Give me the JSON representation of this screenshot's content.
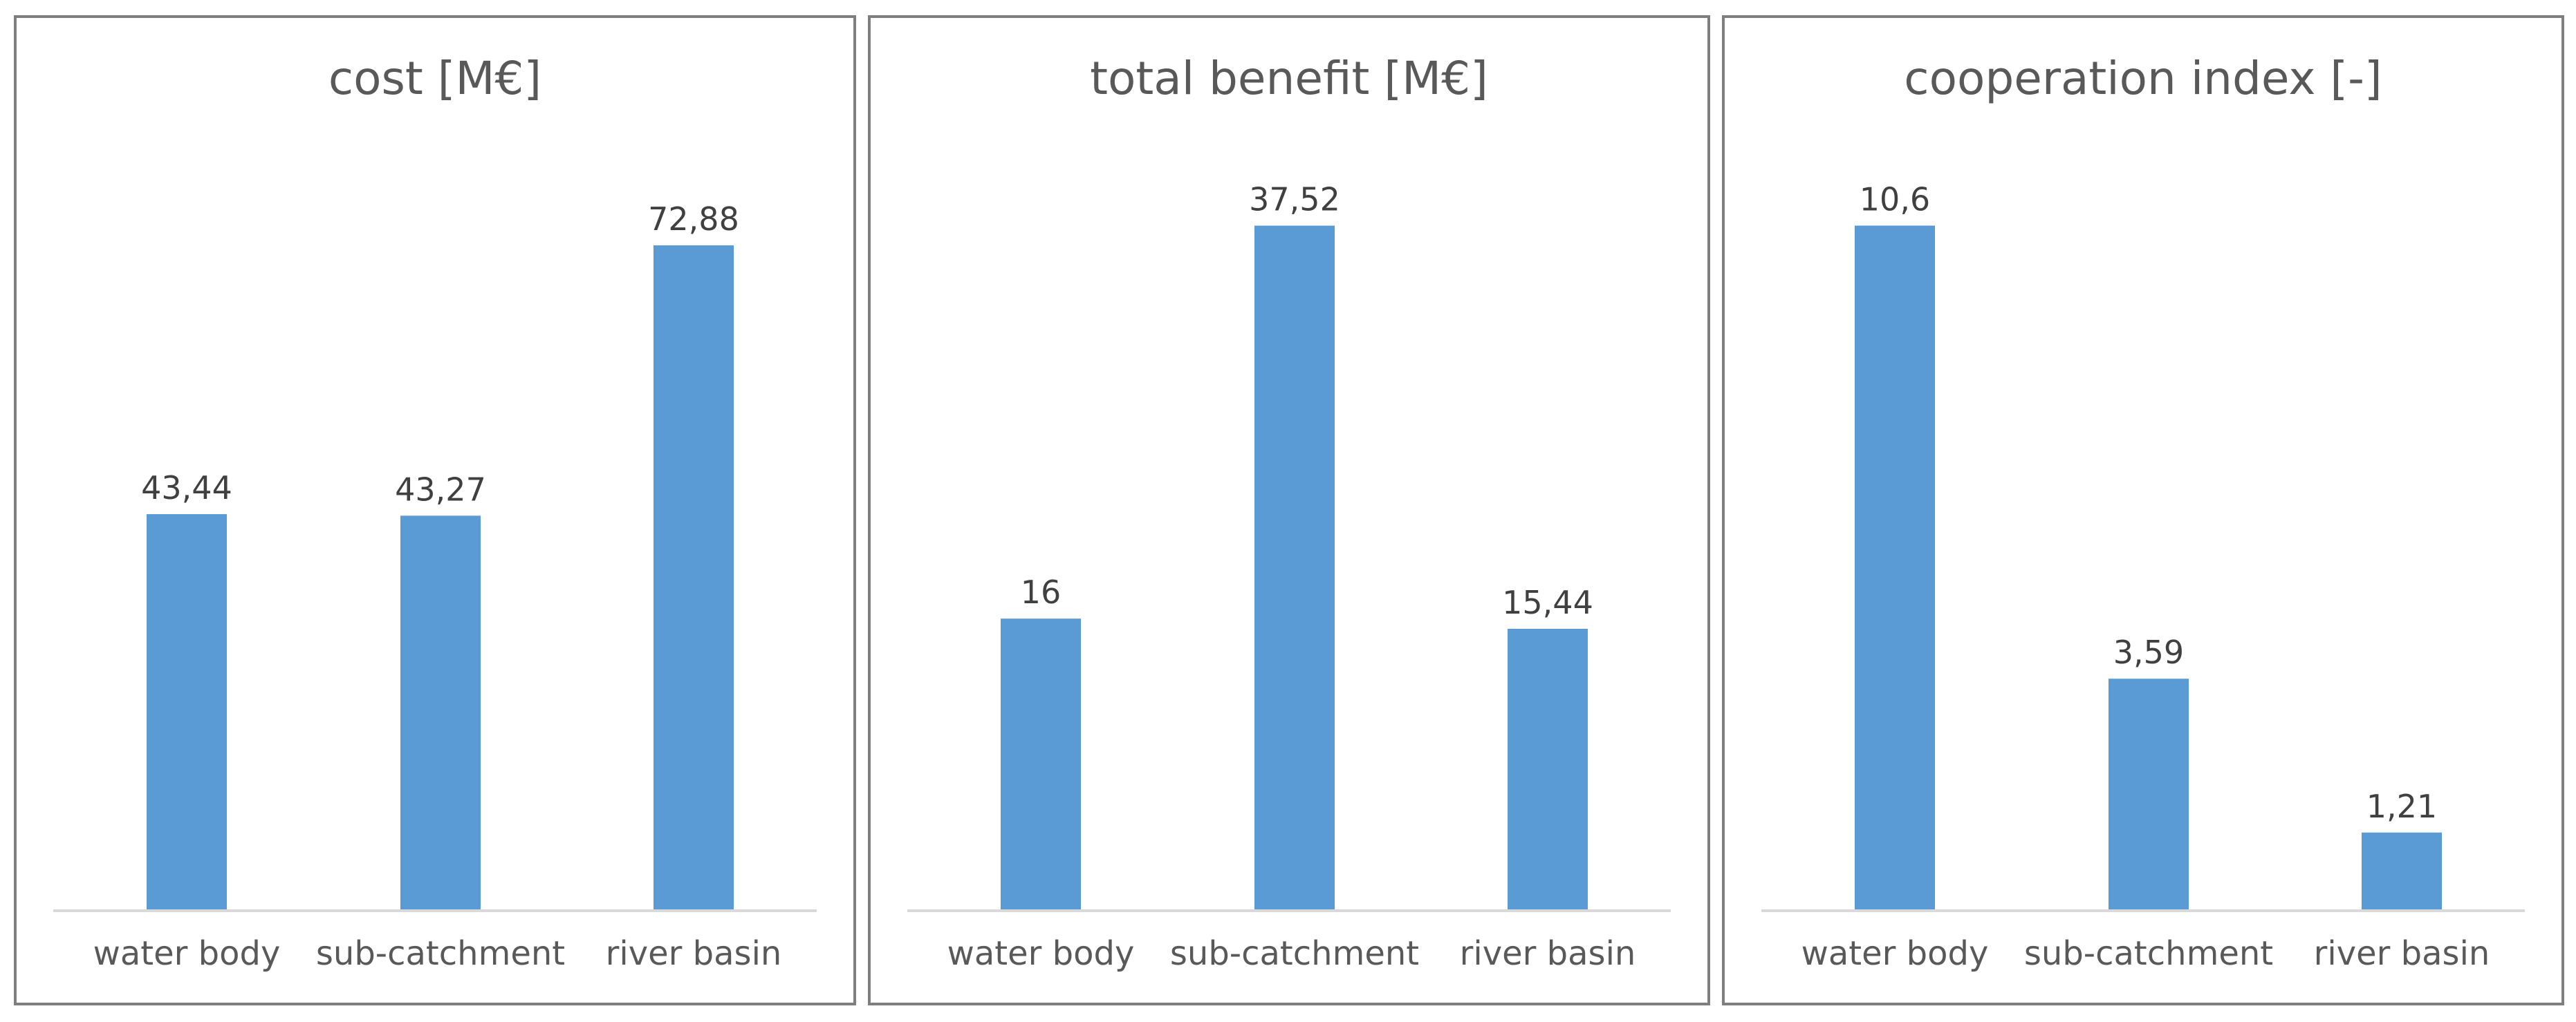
{
  "figure": {
    "bar_color": "#5b9bd5",
    "axis_color": "#d9d9d9",
    "border_color": "#7f7f7f"
  },
  "chart_data": [
    {
      "type": "bar",
      "title": "cost [M€]",
      "categories": [
        "water body",
        "sub-catchment",
        "river basin"
      ],
      "values": [
        43.44,
        43.27,
        72.88
      ],
      "value_labels": [
        "43,44",
        "43,27",
        "72,88"
      ],
      "ylim": [
        0,
        80
      ],
      "xlabel": "",
      "ylabel": "",
      "grid": false,
      "legend": "none"
    },
    {
      "type": "bar",
      "title": "total benefit [M€]",
      "categories": [
        "water body",
        "sub-catchment",
        "river basin"
      ],
      "values": [
        16,
        37.52,
        15.44
      ],
      "value_labels": [
        "16",
        "37,52",
        "15,44"
      ],
      "ylim": [
        0,
        40
      ],
      "xlabel": "",
      "ylabel": "",
      "grid": false,
      "legend": "none"
    },
    {
      "type": "bar",
      "title": "cooperation index [-]",
      "categories": [
        "water body",
        "sub-catchment",
        "river basin"
      ],
      "values": [
        10.6,
        3.59,
        1.21
      ],
      "value_labels": [
        "10,6",
        "3,59",
        "1,21"
      ],
      "ylim": [
        0,
        11.3
      ],
      "xlabel": "",
      "ylabel": "",
      "grid": false,
      "legend": "none"
    }
  ]
}
